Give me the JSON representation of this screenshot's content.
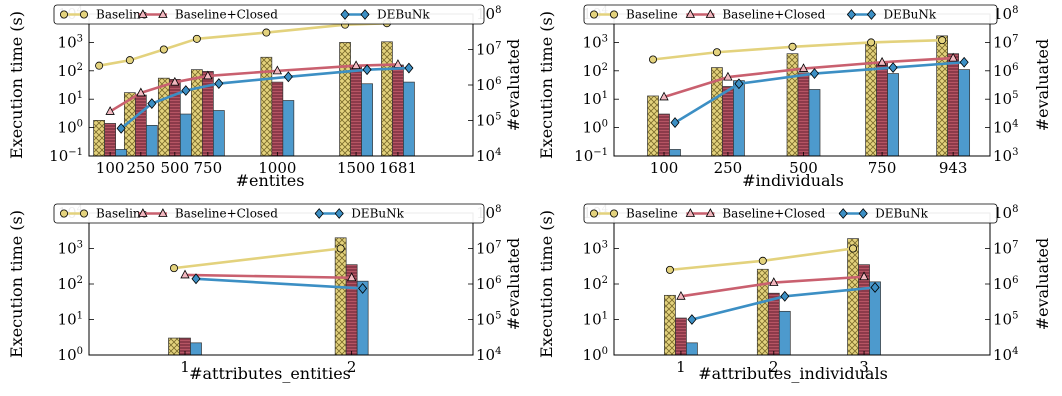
{
  "legend": [
    "Baseline",
    "Baseline+Closed",
    "DEBuNk"
  ],
  "colors": {
    "baseline": "#e3d27d",
    "baseline_hatch": "#7a6a2a",
    "closed": "#c9606f",
    "closed_bar": "#8c3a4a",
    "debunk": "#3c8fc4",
    "debunk_bar": "#4d9acd"
  },
  "chart_data": [
    {
      "type": "bar+line",
      "xlabel": "#entites",
      "ylabel": "Execution time (s)",
      "y2label": "#evaluated",
      "categories": [
        "100",
        "250",
        "500",
        "750",
        "1000",
        "1500",
        "1681"
      ],
      "ylim": [
        0.1,
        10000
      ],
      "yscale": "log",
      "yticks": [
        0.1,
        1,
        10,
        100,
        1000,
        10000
      ],
      "ytick_labels": [
        [
          "10",
          "−1"
        ],
        [
          "10",
          "0"
        ],
        [
          "10",
          "1"
        ],
        [
          "10",
          "2"
        ],
        [
          "10",
          "3"
        ],
        [
          "10",
          "4"
        ]
      ],
      "y2lim": [
        10000,
        100000000
      ],
      "y2scale": "log",
      "y2ticks": [
        10000,
        100000,
        1000000,
        10000000,
        100000000
      ],
      "y2tick_labels": [
        [
          "10",
          "4"
        ],
        [
          "10",
          "5"
        ],
        [
          "10",
          "6"
        ],
        [
          "10",
          "7"
        ],
        [
          "10",
          "8"
        ]
      ],
      "series": [
        {
          "name": "Baseline",
          "bars": [
            1.8,
            17,
            55,
            110,
            300,
            1000,
            1050
          ],
          "line": [
            3.5,
            5,
            10,
            20,
            30,
            50,
            55
          ]
        },
        {
          "name": "Baseline+Closed",
          "bars": [
            1.4,
            14,
            50,
            95,
            40,
            150,
            160
          ],
          "line": [
            0.18,
            0.6,
            1.2,
            1.8,
            2.5,
            3.5,
            3.8
          ]
        },
        {
          "name": "DEBuNk",
          "bars": [
            0.17,
            1.2,
            3,
            4,
            9,
            35,
            40
          ],
          "line": [
            0.06,
            0.3,
            0.7,
            1.1,
            1.7,
            2.7,
            3
          ]
        }
      ]
    },
    {
      "type": "bar+line",
      "xlabel": "#individuals",
      "ylabel": "Execution time (s)",
      "y2label": "#evaluated",
      "categories": [
        "100",
        "250",
        "500",
        "750",
        "943"
      ],
      "ylim": [
        0.1,
        10000
      ],
      "yscale": "log",
      "yticks": [
        0.1,
        1,
        10,
        100,
        1000,
        10000
      ],
      "ytick_labels": [
        [
          "10",
          "−1"
        ],
        [
          "10",
          "0"
        ],
        [
          "10",
          "1"
        ],
        [
          "10",
          "2"
        ],
        [
          "10",
          "3"
        ],
        [
          "10",
          "4"
        ]
      ],
      "y2lim": [
        1000,
        100000000
      ],
      "y2scale": "log",
      "y2ticks": [
        1000,
        10000,
        100000,
        1000000,
        10000000,
        100000000
      ],
      "y2tick_labels": [
        [
          "10",
          "3"
        ],
        [
          "10",
          "4"
        ],
        [
          "10",
          "5"
        ],
        [
          "10",
          "6"
        ],
        [
          "10",
          "7"
        ],
        [
          "10",
          "8"
        ]
      ],
      "series": [
        {
          "name": "Baseline",
          "bars": [
            13,
            130,
            400,
            1000,
            1700
          ],
          "line": [
            2.5,
            4.5,
            7,
            10,
            12
          ]
        },
        {
          "name": "Baseline+Closed",
          "bars": [
            3,
            28,
            85,
            200,
            400
          ],
          "line": [
            0.12,
            0.6,
            1.2,
            2,
            2.8
          ]
        },
        {
          "name": "DEBuNk",
          "bars": [
            0.17,
            45,
            22,
            80,
            110
          ],
          "line": [
            0.015,
            0.35,
            0.8,
            1.3,
            2
          ]
        }
      ]
    },
    {
      "type": "bar+line",
      "xlabel": "#attributes_entities",
      "ylabel": "Execution time (s)",
      "y2label": "#evaluated",
      "categories": [
        "1",
        "2"
      ],
      "ylim": [
        1,
        10000
      ],
      "yscale": "log",
      "yticks": [
        1,
        10,
        100,
        1000,
        10000
      ],
      "ytick_labels": [
        [
          "10",
          "0"
        ],
        [
          "10",
          "1"
        ],
        [
          "10",
          "2"
        ],
        [
          "10",
          "3"
        ],
        [
          "10",
          "4"
        ]
      ],
      "y2lim": [
        10000,
        100000000
      ],
      "y2scale": "log",
      "y2ticks": [
        10000,
        100000,
        1000000,
        10000000,
        100000000
      ],
      "y2tick_labels": [
        [
          "10",
          "4"
        ],
        [
          "10",
          "5"
        ],
        [
          "10",
          "6"
        ],
        [
          "10",
          "7"
        ],
        [
          "10",
          "8"
        ]
      ],
      "series": [
        {
          "name": "Baseline",
          "bars": [
            3,
            2000
          ],
          "line": [
            2.8,
            10
          ]
        },
        {
          "name": "Baseline+Closed",
          "bars": [
            3,
            350
          ],
          "line": [
            1.8,
            1.5
          ]
        },
        {
          "name": "DEBuNk",
          "bars": [
            2.2,
            120
          ],
          "line": [
            1.4,
            0.75
          ]
        }
      ]
    },
    {
      "type": "bar+line",
      "xlabel": "#attributes_individuals",
      "ylabel": "Execution time (s)",
      "y2label": "#evaluated",
      "categories": [
        "1",
        "2",
        "3"
      ],
      "ylim": [
        1,
        10000
      ],
      "yscale": "log",
      "yticks": [
        1,
        10,
        100,
        1000,
        10000
      ],
      "ytick_labels": [
        [
          "10",
          "0"
        ],
        [
          "10",
          "1"
        ],
        [
          "10",
          "2"
        ],
        [
          "10",
          "3"
        ],
        [
          "10",
          "4"
        ]
      ],
      "y2lim": [
        10000,
        100000000
      ],
      "y2scale": "log",
      "y2ticks": [
        10000,
        100000,
        1000000,
        10000000,
        100000000
      ],
      "y2tick_labels": [
        [
          "10",
          "4"
        ],
        [
          "10",
          "5"
        ],
        [
          "10",
          "6"
        ],
        [
          "10",
          "7"
        ],
        [
          "10",
          "8"
        ]
      ],
      "series": [
        {
          "name": "Baseline",
          "bars": [
            48,
            260,
            1900
          ],
          "line": [
            2.5,
            4.5,
            10
          ]
        },
        {
          "name": "Baseline+Closed",
          "bars": [
            11,
            55,
            350
          ],
          "line": [
            0.45,
            1.1,
            1.6
          ]
        },
        {
          "name": "DEBuNk",
          "bars": [
            2.2,
            17,
            115
          ],
          "line": [
            0.1,
            0.45,
            0.8
          ]
        }
      ]
    }
  ]
}
